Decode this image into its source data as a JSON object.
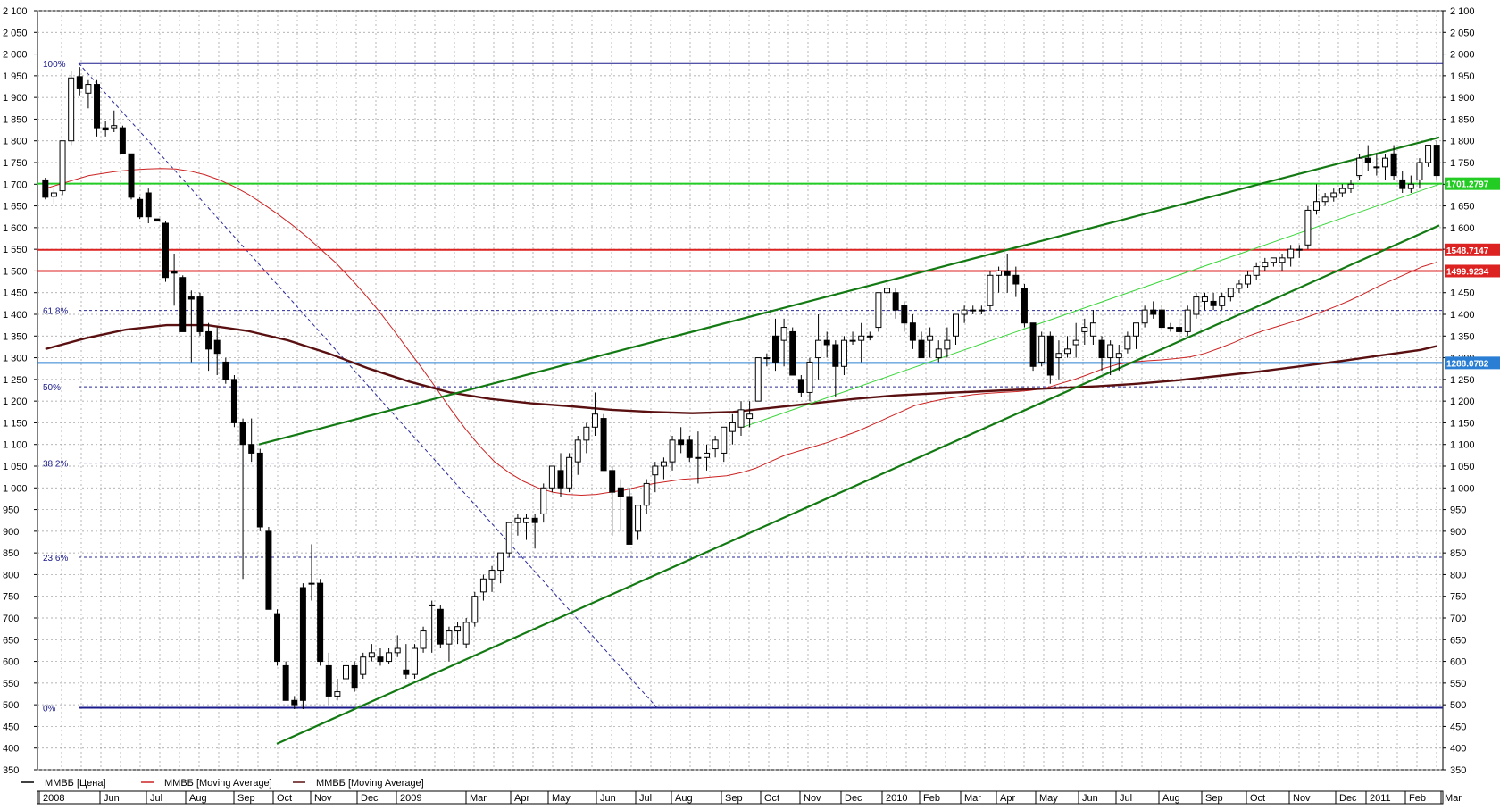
{
  "chart_data": {
    "type": "candlestick",
    "y_range": [
      350,
      2100
    ],
    "y_ticks": [
      350,
      400,
      450,
      500,
      550,
      600,
      650,
      700,
      750,
      800,
      850,
      900,
      950,
      1000,
      1050,
      1100,
      1150,
      1200,
      1250,
      1300,
      1350,
      1400,
      1450,
      1500,
      1550,
      1600,
      1650,
      1700,
      1750,
      1800,
      1850,
      1900,
      1950,
      2000,
      2050,
      2100
    ],
    "y_tick_labels": [
      "350",
      "400",
      "450",
      "500",
      "550",
      "600",
      "650",
      "700",
      "750",
      "800",
      "850",
      "900",
      "950",
      "1 000",
      "1 050",
      "1 100",
      "1 150",
      "1 200",
      "1 250",
      "1 300",
      "1 350",
      "1 400",
      "1 450",
      "1 500",
      "1 550",
      "1 600",
      "1 650",
      "1 700",
      "1 750",
      "1 800",
      "1 850",
      "1 900",
      "1 950",
      "2 000",
      "2 050",
      "2 100"
    ],
    "x_labels": [
      "2008",
      "Jun",
      "Jul",
      "Aug",
      "Sep",
      "Oct",
      "Nov",
      "Dec",
      "2009",
      "Mar",
      "Apr",
      "May",
      "Jun",
      "Jul",
      "Aug",
      "Sep",
      "Oct",
      "Nov",
      "Dec",
      "2010",
      "Feb",
      "Mar",
      "Apr",
      "May",
      "Jun",
      "Jul",
      "Aug",
      "Sep",
      "Oct",
      "Nov",
      "Dec",
      "2011",
      "Feb",
      "Mar"
    ],
    "legend": [
      {
        "label": "ММВБ [Цена]",
        "color": "#000000"
      },
      {
        "label": "ММВБ [Moving Average]",
        "color": "#cc2222"
      },
      {
        "label": "ММВБ [Moving Average]",
        "color": "#5a1010"
      }
    ],
    "fibonacci_levels": [
      {
        "label": "100%",
        "value": 1979
      },
      {
        "label": "61.8%",
        "value": 1409
      },
      {
        "label": "50%",
        "value": 1233
      },
      {
        "label": "38.2%",
        "value": 1057
      },
      {
        "label": "23.6%",
        "value": 840
      },
      {
        "label": "0%",
        "value": 493
      }
    ],
    "horizontal_levels": [
      {
        "label": "1701.2797",
        "value": 1701.28,
        "color": "#22cc22"
      },
      {
        "label": "1548.7147",
        "value": 1548.71,
        "color": "#dd2222"
      },
      {
        "label": "1499.9234",
        "value": 1499.92,
        "color": "#dd2222"
      },
      {
        "label": "1288.0782",
        "value": 1288.08,
        "color": "#2a7fd4"
      }
    ],
    "candles": [
      [
        1710,
        1715,
        1665,
        1670
      ],
      [
        1672,
        1690,
        1655,
        1680
      ],
      [
        1685,
        1800,
        1675,
        1800
      ],
      [
        1800,
        1960,
        1790,
        1945
      ],
      [
        1948,
        1970,
        1905,
        1920
      ],
      [
        1910,
        1940,
        1875,
        1930
      ],
      [
        1930,
        1940,
        1810,
        1830
      ],
      [
        1830,
        1845,
        1810,
        1825
      ],
      [
        1830,
        1870,
        1820,
        1835
      ],
      [
        1830,
        1835,
        1770,
        1770
      ],
      [
        1770,
        1770,
        1665,
        1670
      ],
      [
        1665,
        1670,
        1620,
        1625
      ],
      [
        1680,
        1690,
        1610,
        1625
      ],
      [
        1620,
        1620,
        1615,
        1615
      ],
      [
        1610,
        1615,
        1475,
        1485
      ],
      [
        1500,
        1540,
        1420,
        1495
      ],
      [
        1485,
        1490,
        1360,
        1360
      ],
      [
        1440,
        1455,
        1290,
        1435
      ],
      [
        1440,
        1450,
        1350,
        1360
      ],
      [
        1360,
        1380,
        1270,
        1320
      ],
      [
        1340,
        1370,
        1260,
        1310
      ],
      [
        1290,
        1300,
        1240,
        1250
      ],
      [
        1250,
        1260,
        1140,
        1150
      ],
      [
        1150,
        1160,
        790,
        1100
      ],
      [
        1100,
        1160,
        1060,
        1080
      ],
      [
        1080,
        1090,
        900,
        910
      ],
      [
        900,
        910,
        720,
        720
      ],
      [
        710,
        720,
        590,
        600
      ],
      [
        590,
        600,
        510,
        510
      ],
      [
        510,
        520,
        490,
        500
      ],
      [
        770,
        780,
        490,
        510
      ],
      [
        780,
        870,
        740,
        780
      ],
      [
        780,
        790,
        590,
        600
      ],
      [
        590,
        620,
        500,
        520
      ],
      [
        520,
        560,
        510,
        530
      ],
      [
        560,
        600,
        550,
        590
      ],
      [
        590,
        600,
        530,
        540
      ],
      [
        570,
        620,
        560,
        610
      ],
      [
        610,
        640,
        600,
        620
      ],
      [
        610,
        630,
        590,
        600
      ],
      [
        600,
        630,
        595,
        620
      ],
      [
        620,
        660,
        610,
        630
      ],
      [
        580,
        640,
        560,
        570
      ],
      [
        570,
        640,
        560,
        630
      ],
      [
        630,
        680,
        620,
        670
      ],
      [
        730,
        740,
        620,
        730
      ],
      [
        720,
        730,
        630,
        640
      ],
      [
        640,
        680,
        600,
        670
      ],
      [
        670,
        690,
        640,
        680
      ],
      [
        640,
        700,
        630,
        690
      ],
      [
        690,
        760,
        680,
        750
      ],
      [
        760,
        800,
        740,
        790
      ],
      [
        790,
        820,
        760,
        810
      ],
      [
        810,
        850,
        780,
        850
      ],
      [
        850,
        920,
        840,
        920
      ],
      [
        920,
        940,
        890,
        930
      ],
      [
        920,
        940,
        880,
        930
      ],
      [
        930,
        940,
        860,
        920
      ],
      [
        940,
        1010,
        920,
        1000
      ],
      [
        1000,
        1050,
        990,
        1050
      ],
      [
        1040,
        1080,
        980,
        1000
      ],
      [
        1000,
        1080,
        990,
        1070
      ],
      [
        1060,
        1120,
        1030,
        1110
      ],
      [
        1110,
        1150,
        1080,
        1140
      ],
      [
        1140,
        1220,
        1120,
        1170
      ],
      [
        1160,
        1170,
        1040,
        1040
      ],
      [
        1040,
        1050,
        890,
        990
      ],
      [
        1000,
        1020,
        900,
        980
      ],
      [
        980,
        1000,
        870,
        870
      ],
      [
        900,
        960,
        880,
        960
      ],
      [
        960,
        1020,
        940,
        1010
      ],
      [
        1030,
        1060,
        990,
        1050
      ],
      [
        1050,
        1070,
        1020,
        1060
      ],
      [
        1060,
        1120,
        1040,
        1110
      ],
      [
        1110,
        1140,
        1080,
        1100
      ],
      [
        1110,
        1120,
        1060,
        1070
      ],
      [
        1070,
        1130,
        1010,
        1070
      ],
      [
        1070,
        1100,
        1040,
        1080
      ],
      [
        1090,
        1120,
        1070,
        1110
      ],
      [
        1080,
        1140,
        1060,
        1140
      ],
      [
        1130,
        1170,
        1100,
        1150
      ],
      [
        1140,
        1200,
        1120,
        1180
      ],
      [
        1160,
        1200,
        1140,
        1170
      ],
      [
        1200,
        1300,
        1200,
        1300
      ],
      [
        1300,
        1310,
        1280,
        1300
      ],
      [
        1350,
        1390,
        1270,
        1290
      ],
      [
        1340,
        1390,
        1280,
        1370
      ],
      [
        1360,
        1370,
        1260,
        1260
      ],
      [
        1250,
        1260,
        1210,
        1220
      ],
      [
        1220,
        1300,
        1200,
        1290
      ],
      [
        1300,
        1400,
        1250,
        1340
      ],
      [
        1340,
        1360,
        1300,
        1330
      ],
      [
        1330,
        1340,
        1210,
        1280
      ],
      [
        1280,
        1350,
        1260,
        1340
      ],
      [
        1340,
        1360,
        1330,
        1340
      ],
      [
        1340,
        1380,
        1290,
        1350
      ],
      [
        1350,
        1360,
        1340,
        1350
      ],
      [
        1370,
        1450,
        1360,
        1450
      ],
      [
        1450,
        1480,
        1430,
        1460
      ],
      [
        1450,
        1460,
        1390,
        1410
      ],
      [
        1420,
        1430,
        1360,
        1380
      ],
      [
        1380,
        1400,
        1320,
        1340
      ],
      [
        1340,
        1360,
        1300,
        1300
      ],
      [
        1340,
        1370,
        1300,
        1350
      ],
      [
        1300,
        1340,
        1290,
        1320
      ],
      [
        1320,
        1370,
        1300,
        1340
      ],
      [
        1350,
        1400,
        1330,
        1400
      ],
      [
        1400,
        1420,
        1380,
        1410
      ],
      [
        1410,
        1420,
        1400,
        1410
      ],
      [
        1410,
        1420,
        1400,
        1410
      ],
      [
        1420,
        1500,
        1410,
        1490
      ],
      [
        1490,
        1510,
        1450,
        1500
      ],
      [
        1500,
        1540,
        1450,
        1490
      ],
      [
        1490,
        1510,
        1440,
        1470
      ],
      [
        1460,
        1470,
        1370,
        1380
      ],
      [
        1380,
        1380,
        1270,
        1280
      ],
      [
        1290,
        1360,
        1280,
        1350
      ],
      [
        1350,
        1360,
        1240,
        1260
      ],
      [
        1300,
        1340,
        1250,
        1310
      ],
      [
        1310,
        1350,
        1300,
        1320
      ],
      [
        1330,
        1380,
        1300,
        1340
      ],
      [
        1360,
        1390,
        1330,
        1370
      ],
      [
        1350,
        1410,
        1330,
        1380
      ],
      [
        1340,
        1350,
        1270,
        1300
      ],
      [
        1300,
        1340,
        1260,
        1330
      ],
      [
        1300,
        1330,
        1270,
        1310
      ],
      [
        1320,
        1360,
        1310,
        1350
      ],
      [
        1350,
        1380,
        1320,
        1380
      ],
      [
        1380,
        1420,
        1370,
        1410
      ],
      [
        1410,
        1430,
        1390,
        1400
      ],
      [
        1410,
        1420,
        1370,
        1370
      ],
      [
        1370,
        1380,
        1360,
        1370
      ],
      [
        1370,
        1390,
        1340,
        1360
      ],
      [
        1360,
        1420,
        1350,
        1410
      ],
      [
        1400,
        1450,
        1390,
        1440
      ],
      [
        1430,
        1450,
        1410,
        1440
      ],
      [
        1430,
        1450,
        1410,
        1420
      ],
      [
        1420,
        1450,
        1410,
        1440
      ],
      [
        1440,
        1460,
        1430,
        1460
      ],
      [
        1460,
        1480,
        1450,
        1470
      ],
      [
        1470,
        1500,
        1460,
        1490
      ],
      [
        1490,
        1520,
        1480,
        1510
      ],
      [
        1510,
        1530,
        1500,
        1520
      ],
      [
        1520,
        1530,
        1510,
        1530
      ],
      [
        1520,
        1540,
        1500,
        1530
      ],
      [
        1530,
        1560,
        1510,
        1550
      ],
      [
        1550,
        1560,
        1530,
        1550
      ],
      [
        1560,
        1650,
        1550,
        1640
      ],
      [
        1640,
        1700,
        1630,
        1660
      ],
      [
        1660,
        1680,
        1650,
        1670
      ],
      [
        1670,
        1690,
        1660,
        1680
      ],
      [
        1680,
        1700,
        1670,
        1690
      ],
      [
        1690,
        1710,
        1680,
        1700
      ],
      [
        1720,
        1770,
        1710,
        1760
      ],
      [
        1760,
        1790,
        1730,
        1750
      ],
      [
        1740,
        1770,
        1720,
        1740
      ],
      [
        1740,
        1770,
        1710,
        1760
      ],
      [
        1770,
        1790,
        1710,
        1720
      ],
      [
        1710,
        1730,
        1680,
        1690
      ],
      [
        1690,
        1720,
        1680,
        1700
      ],
      [
        1710,
        1760,
        1690,
        1750
      ],
      [
        1750,
        1790,
        1740,
        1790
      ],
      [
        1790,
        1800,
        1710,
        1720
      ]
    ],
    "moving_average_fast": [
      [
        0,
        1690
      ],
      [
        1,
        1700
      ],
      [
        2,
        1710
      ],
      [
        3,
        1720
      ],
      [
        4,
        1725
      ],
      [
        5,
        1730
      ],
      [
        6,
        1733
      ],
      [
        7,
        1735
      ],
      [
        8,
        1736
      ],
      [
        9,
        1735
      ],
      [
        10,
        1730
      ],
      [
        11,
        1722
      ],
      [
        12,
        1710
      ],
      [
        13,
        1695
      ],
      [
        14,
        1677
      ],
      [
        15,
        1655
      ],
      [
        16,
        1632
      ],
      [
        17,
        1607
      ],
      [
        18,
        1580
      ],
      [
        19,
        1550
      ],
      [
        20,
        1520
      ],
      [
        21,
        1485
      ],
      [
        22,
        1448
      ],
      [
        23,
        1408
      ],
      [
        24,
        1365
      ],
      [
        25,
        1320
      ],
      [
        26,
        1275
      ],
      [
        27,
        1228
      ],
      [
        28,
        1180
      ],
      [
        29,
        1135
      ],
      [
        30,
        1095
      ],
      [
        31,
        1060
      ],
      [
        32,
        1035
      ],
      [
        33,
        1015
      ],
      [
        34,
        1000
      ],
      [
        35,
        990
      ],
      [
        36,
        985
      ],
      [
        37,
        983
      ],
      [
        38,
        985
      ],
      [
        39,
        990
      ],
      [
        40,
        995
      ],
      [
        41,
        1003
      ],
      [
        42,
        1010
      ],
      [
        43,
        1015
      ],
      [
        44,
        1020
      ],
      [
        45,
        1022
      ],
      [
        46,
        1025
      ],
      [
        47,
        1028
      ],
      [
        48,
        1035
      ],
      [
        49,
        1045
      ],
      [
        50,
        1060
      ],
      [
        51,
        1075
      ],
      [
        52,
        1085
      ],
      [
        53,
        1095
      ],
      [
        54,
        1105
      ],
      [
        55,
        1118
      ],
      [
        56,
        1130
      ],
      [
        57,
        1145
      ],
      [
        58,
        1160
      ],
      [
        59,
        1175
      ],
      [
        60,
        1190
      ],
      [
        61,
        1198
      ],
      [
        62,
        1205
      ],
      [
        63,
        1210
      ],
      [
        64,
        1215
      ],
      [
        65,
        1218
      ],
      [
        66,
        1220
      ],
      [
        67,
        1222
      ],
      [
        68,
        1225
      ],
      [
        69,
        1230
      ],
      [
        70,
        1240
      ],
      [
        71,
        1250
      ],
      [
        72,
        1262
      ],
      [
        73,
        1275
      ],
      [
        74,
        1285
      ],
      [
        75,
        1290
      ],
      [
        76,
        1293
      ],
      [
        77,
        1295
      ],
      [
        78,
        1298
      ],
      [
        79,
        1302
      ],
      [
        80,
        1310
      ],
      [
        81,
        1322
      ],
      [
        82,
        1335
      ],
      [
        83,
        1350
      ],
      [
        84,
        1362
      ],
      [
        85,
        1372
      ],
      [
        86,
        1382
      ],
      [
        87,
        1393
      ],
      [
        88,
        1405
      ],
      [
        89,
        1418
      ],
      [
        90,
        1432
      ],
      [
        91,
        1448
      ],
      [
        92,
        1465
      ],
      [
        93,
        1480
      ],
      [
        94,
        1495
      ],
      [
        95,
        1510
      ],
      [
        96,
        1520
      ]
    ],
    "moving_average_slow": [
      [
        0,
        1320
      ],
      [
        5,
        1345
      ],
      [
        10,
        1365
      ],
      [
        15,
        1375
      ],
      [
        20,
        1375
      ],
      [
        25,
        1362
      ],
      [
        30,
        1340
      ],
      [
        35,
        1310
      ],
      [
        40,
        1275
      ],
      [
        45,
        1245
      ],
      [
        50,
        1220
      ],
      [
        55,
        1205
      ],
      [
        60,
        1195
      ],
      [
        65,
        1188
      ],
      [
        70,
        1180
      ],
      [
        75,
        1175
      ],
      [
        80,
        1172
      ],
      [
        85,
        1175
      ],
      [
        90,
        1185
      ],
      [
        95,
        1195
      ],
      [
        100,
        1205
      ],
      [
        105,
        1213
      ],
      [
        110,
        1218
      ],
      [
        115,
        1222
      ],
      [
        120,
        1226
      ],
      [
        125,
        1230
      ],
      [
        130,
        1234
      ],
      [
        135,
        1240
      ],
      [
        140,
        1248
      ],
      [
        145,
        1258
      ],
      [
        150,
        1268
      ],
      [
        155,
        1280
      ],
      [
        160,
        1292
      ],
      [
        165,
        1305
      ],
      [
        170,
        1318
      ],
      [
        172,
        1327
      ]
    ]
  }
}
